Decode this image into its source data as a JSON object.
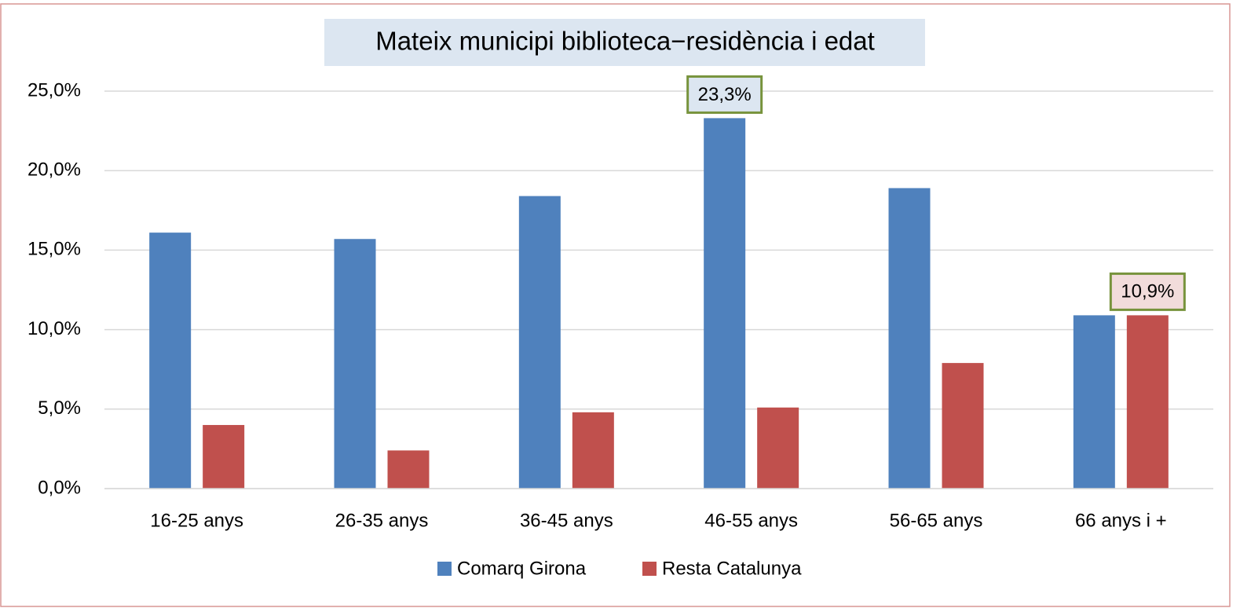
{
  "chart_data": {
    "type": "bar",
    "title": "Mateix municipi biblioteca−residència i edat",
    "categories": [
      "16-25 anys",
      "26-35 anys",
      "36-45 anys",
      "46-55 anys",
      "56-65 anys",
      "66 anys i +"
    ],
    "series": [
      {
        "name": "Comarq Girona",
        "color": "#4f81bd",
        "values": [
          16.1,
          15.7,
          18.4,
          23.3,
          18.9,
          10.9
        ],
        "value_labels": [
          null,
          null,
          null,
          "23,3%",
          null,
          null
        ]
      },
      {
        "name": "Resta Catalunya",
        "color": "#c0504d",
        "values": [
          4.0,
          2.4,
          4.8,
          5.1,
          7.9,
          10.9
        ],
        "value_labels": [
          null,
          null,
          null,
          null,
          null,
          "10,9%"
        ]
      }
    ],
    "ylim": [
      0,
      25
    ],
    "yticks": [
      {
        "value": 0,
        "label": "0,0%"
      },
      {
        "value": 5,
        "label": "5,0%"
      },
      {
        "value": 10,
        "label": "10,0%"
      },
      {
        "value": 15,
        "label": "15,0%"
      },
      {
        "value": 20,
        "label": "20,0%"
      },
      {
        "value": 25,
        "label": "25,0%"
      }
    ],
    "grid": true,
    "legend": "bottom"
  }
}
